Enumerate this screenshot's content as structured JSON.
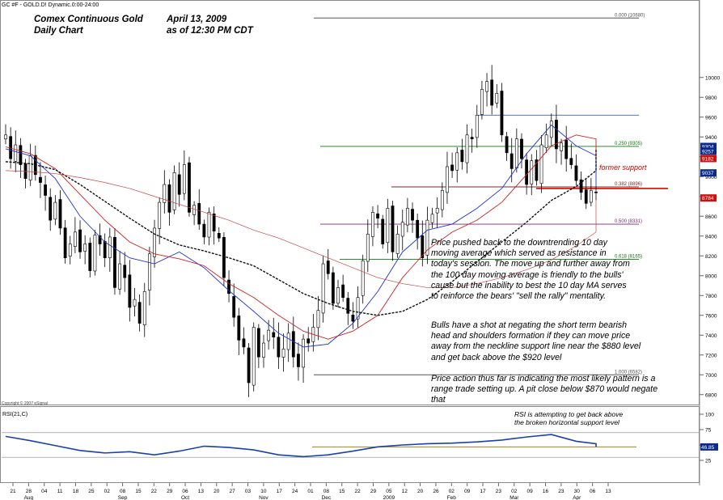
{
  "header": {
    "symbol_line": "GC #F - GOLD.D! Dynamic.0:00-24:00",
    "title_line1": "Comex Continuous Gold",
    "title_line2": "Daily Chart",
    "date_line1": "April 13, 2009",
    "date_line2": "as of  12:30 PM CDT",
    "copyright": "Copyright © 2007 eSignal"
  },
  "annotations": {
    "paragraph1": "Price pushed back to the downtrending 10 day moving average which served as resistance in today's session. The move up and further away from the 100 day moving average is friendly to the bulls' cause but the inability to best the 10 day MA serves to reinforce the bears' \"sell the rally\" mentality.",
    "paragraph2": "Bulls have a shot at negating the short term bearish head and shoulders formation if they can move price away from the neckline support line near the $880 level and get back above the $920 level",
    "paragraph3": "Price action thus far is indicating the most likely pattern is a range trade setting up. A pit close below $870 would negate that",
    "former_support": "former support",
    "rsi_note_line1": "RSI is attempting to get back above",
    "rsi_note_line2": "the broken horizontal support level"
  },
  "colors": {
    "price": "#000000",
    "ma10": "#2233cc",
    "ma20": "#cc2222",
    "ma50": "#111111",
    "ma100": "#cc4444",
    "fib_top": "#555555",
    "fib_0382": "#7a2a2a",
    "fib_0500": "#7a2a7a",
    "fib_0618": "#117711",
    "fib_0250": "#117711",
    "rsi_line": "#1a3fb0",
    "rsi_support": "#a08020",
    "support_line": "#dd0000"
  },
  "chart_data": [
    {
      "type": "candlestick",
      "title": "Comex Continuous Gold Daily Chart",
      "y_axis_range": [
        6700,
        10700
      ],
      "y_ticks": [
        6800,
        7000,
        7200,
        7400,
        7600,
        7800,
        8000,
        8200,
        8400,
        8600,
        8800,
        9000,
        9200,
        9400,
        9600,
        9800,
        10000
      ],
      "y_tick_labels": [
        "6800",
        "7000",
        "7200",
        "7400",
        "7600",
        "7800",
        "8000",
        "8200",
        "8400",
        "8600",
        "8800",
        "9000",
        "9200",
        "9400",
        "9600",
        "9800",
        "10000"
      ],
      "x_day_labels": [
        "21",
        "28",
        "04",
        "11",
        "18",
        "25",
        "02",
        "08",
        "15",
        "22",
        "29",
        "06",
        "13",
        "20",
        "27",
        "03",
        "10",
        "17",
        "24",
        "01",
        "08",
        "15",
        "22",
        "29",
        "05",
        "12",
        "20",
        "26",
        "02",
        "09",
        "17",
        "23",
        "02",
        "09",
        "16",
        "23",
        "30",
        "06",
        "13"
      ],
      "x_month_labels": [
        "Aug",
        "Sep",
        "Oct",
        "Nov",
        "Dec",
        "2009",
        "Feb",
        "Mar",
        "Apr"
      ],
      "closes": [
        9420,
        9180,
        9320,
        9120,
        8980,
        9210,
        9020,
        8940,
        8810,
        8560,
        8740,
        8480,
        8180,
        8320,
        8440,
        8240,
        8320,
        8050,
        8410,
        8320,
        8180,
        8390,
        7880,
        8120,
        7980,
        7680,
        7760,
        7520,
        7840,
        8220,
        8480,
        8740,
        8920,
        8640,
        9040,
        8820,
        9120,
        8640,
        8710,
        8520,
        8390,
        8640,
        8450,
        8380,
        7980,
        7820,
        7580,
        7350,
        7280,
        6920,
        7480,
        7180,
        7320,
        7450,
        7380,
        7180,
        7260,
        7420,
        7180,
        7080,
        7360,
        7320,
        7480,
        7650,
        8120,
        8020,
        7720,
        7880,
        7780,
        7620,
        7540,
        7780,
        8150,
        8420,
        8640,
        8580,
        8320,
        8680,
        8240,
        8420,
        8540,
        8680,
        8560,
        8380,
        8180,
        8560,
        8620,
        8680,
        8860,
        9100,
        9060,
        9240,
        9150,
        9420,
        9380,
        9620,
        9880,
        9960,
        9720,
        9840,
        9420,
        9240,
        9080,
        9380,
        9180,
        8920,
        9160,
        8960,
        9320,
        9420,
        9560,
        9280,
        9340,
        9180,
        9120,
        8960,
        8840,
        8730,
        8860,
        8840
      ],
      "last_price": 8844,
      "last_price_label": "8844",
      "series": [
        {
          "name": "",
          "closes_every_5": [
            9280,
            9210,
            8980,
            8600,
            8340,
            8180,
            8120,
            8240,
            8080,
            7850,
            7640,
            7420,
            7280,
            7310,
            7520,
            7840,
            8240,
            8460,
            8520,
            8680,
            8880,
            9230,
            9520,
            9310,
            9210,
            9060,
            8900
          ]
        },
        {
          "name": "",
          "closes_every_5": [
            9300,
            9230,
            9080,
            8820,
            8560,
            8340,
            8220,
            8170,
            8100,
            7920,
            7780,
            7600,
            7440,
            7360,
            7440,
            7600,
            7980,
            8260,
            8440,
            8560,
            8740,
            9020,
            9310,
            9420,
            9380,
            9260,
            9180
          ]
        },
        {
          "name": "",
          "closes_every_5": [
            9150,
            9130,
            9070,
            8920,
            8750,
            8580,
            8420,
            8310,
            8250,
            8180,
            8100,
            7960,
            7820,
            7720,
            7640,
            7600,
            7640,
            7760,
            7940,
            8140,
            8340,
            8540,
            8760,
            8900,
            9060,
            9200,
            9280
          ]
        },
        {
          "name": "",
          "closes_every_5": [
            9060,
            9050,
            9030,
            8990,
            8940,
            8880,
            8800,
            8720,
            8640,
            8560,
            8460,
            8380,
            8280,
            8180,
            8080,
            7980,
            7920,
            7880,
            7880,
            7920,
            7980,
            8060,
            8160,
            8300,
            8440,
            8600,
            8760
          ]
        }
      ],
      "fib_levels": [
        {
          "label": "0.000 (10680)",
          "value": 10680
        },
        {
          "label": "0.250 (9305)",
          "value": 9305
        },
        {
          "label": "0.382 (8896)",
          "value": 8896
        },
        {
          "label": "0.500 (8331)",
          "value": 8331
        },
        {
          "label": "0.618 (8165)",
          "value": 8165
        },
        {
          "label": "1.000 (6582)",
          "value": 6582
        }
      ],
      "fib_level_display": [
        10600,
        9305,
        8896,
        8520,
        8165,
        7000
      ],
      "price_flags": [
        {
          "label": "9304",
          "value": 9304
        },
        {
          "label": "9257",
          "value": 9257
        },
        {
          "label": "9182",
          "value": 9182
        },
        {
          "label": "9037",
          "value": 9037
        },
        {
          "label": "8784",
          "value": 8784
        }
      ],
      "support_level": 8880,
      "peak_level": 9620
    },
    {
      "type": "line",
      "title": "RSI(21,C)",
      "y_axis_range": [
        0,
        100
      ],
      "y_ticks": [
        25,
        50,
        75,
        100
      ],
      "y_tick_labels": [
        "25",
        "50",
        "75",
        "100"
      ],
      "values_every_5": [
        64,
        57,
        49,
        41,
        37,
        39,
        34,
        40,
        48,
        46,
        42,
        34,
        31,
        34,
        40,
        47,
        50,
        52,
        53,
        55,
        58,
        63,
        67,
        56,
        52,
        48,
        47
      ],
      "last_value_label": "46.85",
      "last_value": 46.85,
      "support_level": 46.85
    }
  ]
}
